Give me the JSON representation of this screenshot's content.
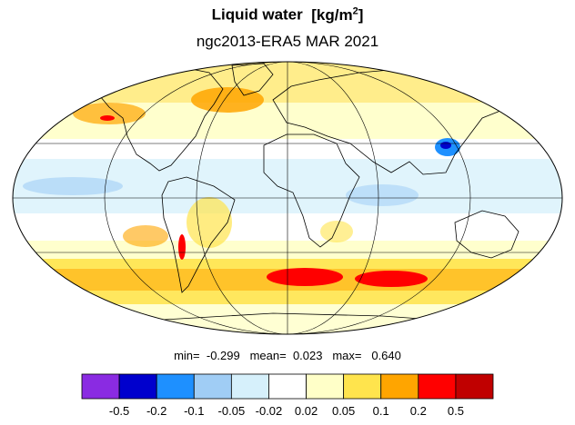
{
  "title": "Liquid water",
  "units_base": "[kg/m",
  "units_exp": "2",
  "units_close": "]",
  "subtitle": "ngc2013-ERA5 MAR 2021",
  "stats": {
    "min_label": "min=",
    "min_value": "-0.299",
    "mean_label": "mean=",
    "mean_value": "0.023",
    "max_label": "max=",
    "max_value": "0.640"
  },
  "colorbar": {
    "colors": [
      "#8a2be2",
      "#0000cd",
      "#1e90ff",
      "#a0cdf5",
      "#d6f0fb",
      "#ffffff",
      "#ffffc8",
      "#ffe44d",
      "#ffa500",
      "#ff0000",
      "#c00000"
    ],
    "ticks": [
      "-0.5",
      "-0.2",
      "-0.1",
      "-0.05",
      "-0.02",
      "0.02",
      "0.05",
      "0.1",
      "0.2",
      "0.5"
    ]
  },
  "map": {
    "projection": "mollweide",
    "land_outline_color": "#000000",
    "grid_color": "#000000"
  }
}
